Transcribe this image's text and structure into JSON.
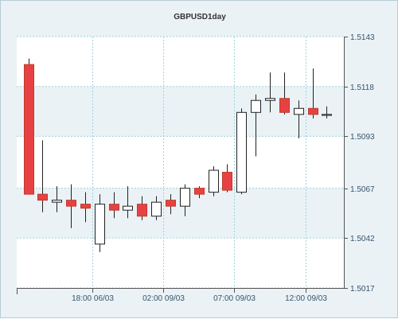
{
  "chart_data": {
    "type": "candlestick",
    "title": "GBPUSD1day",
    "yaxis": {
      "ylim": [
        1.5017,
        1.5143
      ],
      "ticks": [
        "1.5143",
        "1.5118",
        "1.5093",
        "1.5067",
        "1.5042",
        "1.5017"
      ],
      "tick_values": [
        1.5143,
        1.5118,
        1.5093,
        1.5067,
        1.5042,
        1.5017
      ],
      "position": "right"
    },
    "xaxis": {
      "ticks": [
        {
          "label": "18:00 06/03",
          "at_index": 4.5
        },
        {
          "label": "02:00 09/03",
          "at_index": 9.5
        },
        {
          "label": "07:00 09/03",
          "at_index": 14.5
        },
        {
          "label": "12:00 09/03",
          "at_index": 19.5
        }
      ]
    },
    "grid": true,
    "colors": {
      "bearish_fill": "#e84143",
      "bearish_stroke": "#c0392b",
      "bullish_fill": "#ffffff",
      "bullish_stroke": "#222222",
      "grid": "#9fd3d9",
      "band_light": "#ffffff",
      "band_dark": "#eaf2f6",
      "axis": "#555555"
    },
    "candles": [
      {
        "open": 1.5129,
        "high": 1.5132,
        "low": 1.5064,
        "close": 1.5064
      },
      {
        "open": 1.5064,
        "high": 1.5091,
        "low": 1.5055,
        "close": 1.5061
      },
      {
        "open": 1.506,
        "high": 1.5068,
        "low": 1.5055,
        "close": 1.5061
      },
      {
        "open": 1.5061,
        "high": 1.5069,
        "low": 1.5047,
        "close": 1.5058
      },
      {
        "open": 1.5059,
        "high": 1.5065,
        "low": 1.505,
        "close": 1.5057
      },
      {
        "open": 1.5039,
        "high": 1.5064,
        "low": 1.5035,
        "close": 1.5059
      },
      {
        "open": 1.5059,
        "high": 1.5065,
        "low": 1.5052,
        "close": 1.5056
      },
      {
        "open": 1.5056,
        "high": 1.5068,
        "low": 1.5052,
        "close": 1.5058
      },
      {
        "open": 1.5059,
        "high": 1.5063,
        "low": 1.5051,
        "close": 1.5053
      },
      {
        "open": 1.5053,
        "high": 1.5063,
        "low": 1.5051,
        "close": 1.506
      },
      {
        "open": 1.5061,
        "high": 1.5064,
        "low": 1.5054,
        "close": 1.5058
      },
      {
        "open": 1.5058,
        "high": 1.5069,
        "low": 1.5053,
        "close": 1.5067
      },
      {
        "open": 1.5067,
        "high": 1.5068,
        "low": 1.5062,
        "close": 1.5064
      },
      {
        "open": 1.5065,
        "high": 1.5078,
        "low": 1.5063,
        "close": 1.5076
      },
      {
        "open": 1.5075,
        "high": 1.5079,
        "low": 1.5065,
        "close": 1.5066
      },
      {
        "open": 1.5065,
        "high": 1.5107,
        "low": 1.5064,
        "close": 1.5105
      },
      {
        "open": 1.5105,
        "high": 1.5114,
        "low": 1.5083,
        "close": 1.5111
      },
      {
        "open": 1.5111,
        "high": 1.5125,
        "low": 1.5105,
        "close": 1.5112
      },
      {
        "open": 1.5112,
        "high": 1.5125,
        "low": 1.5104,
        "close": 1.5105
      },
      {
        "open": 1.5104,
        "high": 1.5111,
        "low": 1.5092,
        "close": 1.5107
      },
      {
        "open": 1.5107,
        "high": 1.5127,
        "low": 1.5102,
        "close": 1.5104
      },
      {
        "open": 1.5104,
        "high": 1.5108,
        "low": 1.5102,
        "close": 1.5104
      }
    ]
  }
}
